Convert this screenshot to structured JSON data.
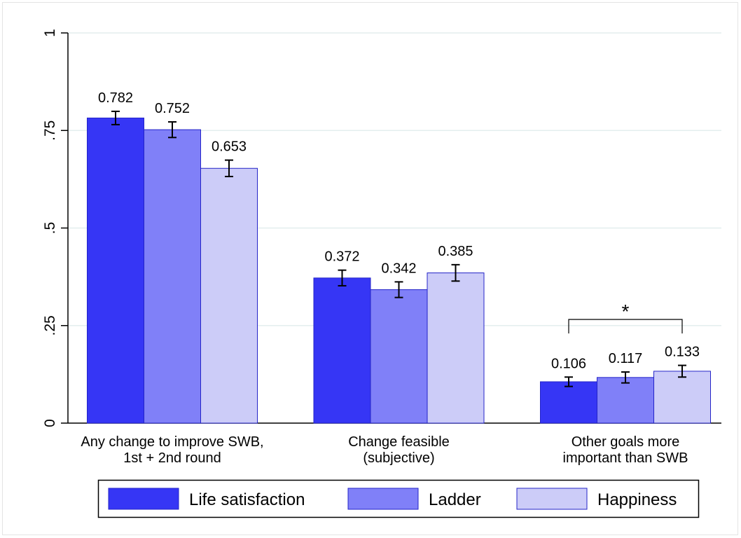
{
  "chart_data": {
    "type": "bar",
    "categories": [
      "Any change to improve SWB,\n1st + 2nd round",
      "Change feasible\n(subjective)",
      "Other goals more\nimportant than SWB"
    ],
    "series": [
      {
        "name": "Life satisfaction",
        "color": "#3636f5",
        "values": [
          0.782,
          0.372,
          0.106
        ],
        "errors": [
          0.017,
          0.02,
          0.012
        ]
      },
      {
        "name": "Ladder",
        "color": "#8080f8",
        "values": [
          0.752,
          0.342,
          0.117
        ],
        "errors": [
          0.02,
          0.02,
          0.014
        ]
      },
      {
        "name": "Happiness",
        "color": "#ccccf8",
        "values": [
          0.653,
          0.385,
          0.133
        ],
        "errors": [
          0.021,
          0.021,
          0.015
        ]
      }
    ],
    "annotation": "*",
    "ylim": [
      0,
      1
    ],
    "yticks": [
      0,
      {
        "value": 0.25,
        "label": ".25"
      },
      {
        "value": 0.5,
        "label": ".5"
      },
      {
        "value": 0.75,
        "label": ".75"
      },
      1
    ],
    "grid": true,
    "legend": "bottom"
  }
}
